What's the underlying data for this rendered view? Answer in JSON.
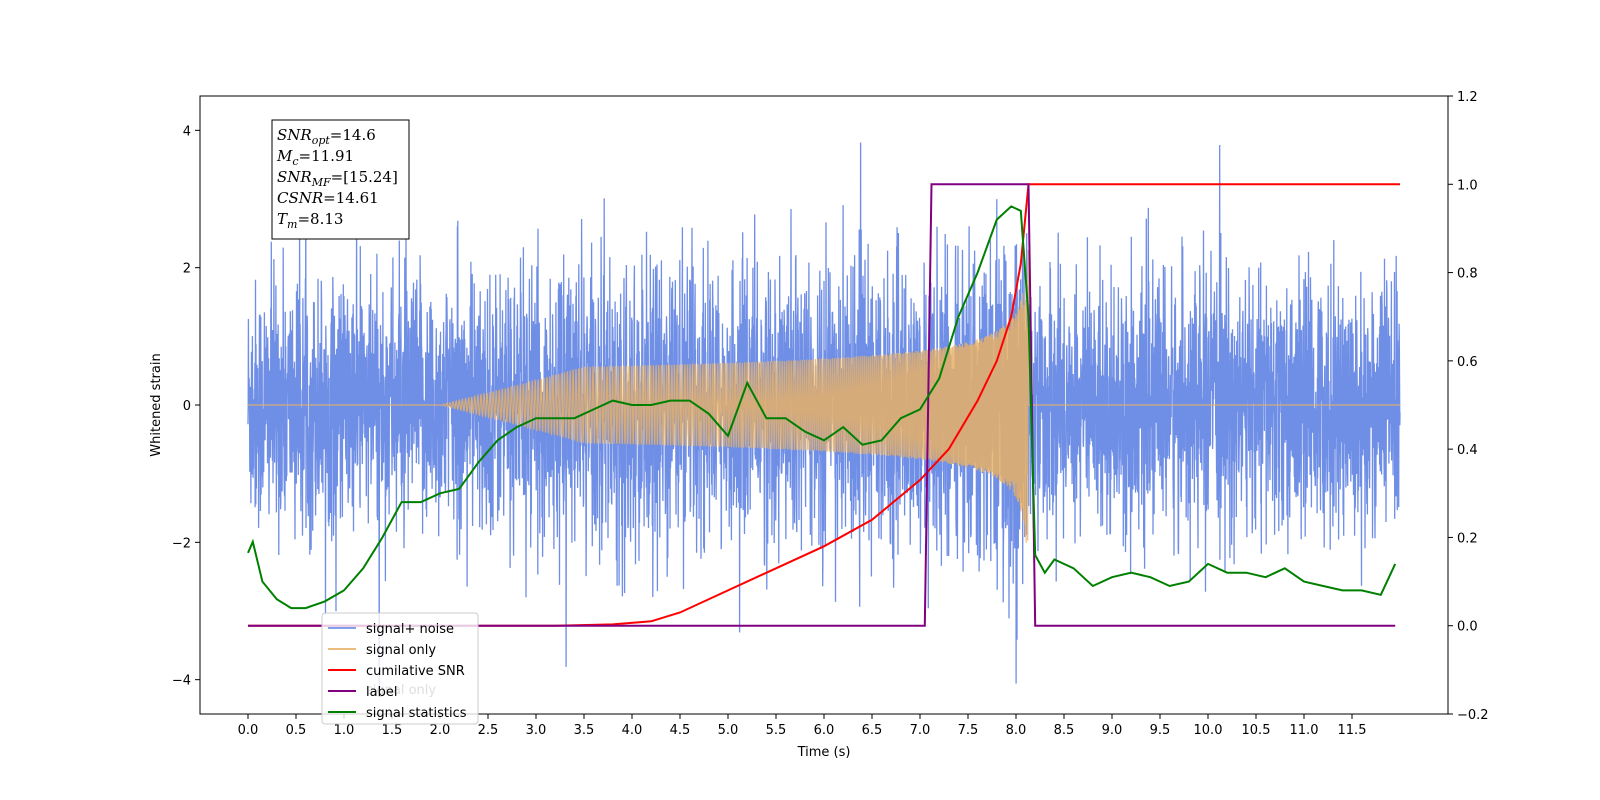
{
  "chart_data": {
    "type": "line",
    "title": "",
    "xlabel": "Time (s)",
    "ylabel": "Whitened strain",
    "xlim": [
      -0.5,
      12.5
    ],
    "ylim": [
      -4.5,
      4.5
    ],
    "y2lim": [
      -0.2,
      1.2
    ],
    "grid": false,
    "legend_position": "lower-left",
    "x_ticks": [
      "0.0",
      "0.5",
      "1.0",
      "1.5",
      "2.0",
      "2.5",
      "3.0",
      "3.5",
      "4.0",
      "4.5",
      "5.0",
      "5.5",
      "6.0",
      "6.5",
      "7.0",
      "7.5",
      "8.0",
      "8.5",
      "9.0",
      "9.5",
      "10.0",
      "10.5",
      "11.0",
      "11.5"
    ],
    "y_ticks": [
      "4",
      "2",
      "0",
      "−2",
      "−4"
    ],
    "y2_ticks": [
      "1.2",
      "1.0",
      "0.8",
      "0.6",
      "0.4",
      "0.2",
      "0.0",
      "−0.2"
    ],
    "annotation": [
      {
        "symbol": "SNR",
        "subscript": "opt",
        "value": "=14.6"
      },
      {
        "symbol": "M",
        "subscript": "c",
        "value": "=11.91"
      },
      {
        "symbol": "SNR",
        "subscript": "MF",
        "value": "=[15.24]"
      },
      {
        "symbol": "CSNR",
        "subscript": "",
        "value": "=14.61"
      },
      {
        "symbol": "T",
        "subscript": "m",
        "value": "=8.13"
      }
    ],
    "legend": [
      "signal+ noise",
      "signal only",
      "cumilative SNR",
      "label",
      "signal statistics"
    ],
    "legend_hidden_text": "signal only",
    "series": [
      {
        "name": "signal+ noise",
        "axis": "left",
        "color": "#6f8ee6",
        "description": "whitened noise plus signal, noise amplitude roughly within ±2.5 with spikes to ±4",
        "x_range": [
          0.0,
          12.0
        ],
        "noise_sigma": 0.9
      },
      {
        "name": "signal only",
        "axis": "left",
        "color": "#e8b066",
        "description": "chirp signal growing in amplitude until merger at about 8.13 s",
        "x_range": [
          0.0,
          12.0
        ],
        "merger_time": 8.13,
        "peak_amplitude": 2.6
      },
      {
        "name": "cumilative SNR",
        "axis": "right",
        "color": "#ff0000",
        "x": [
          0.0,
          3.2,
          3.8,
          4.2,
          4.5,
          5.0,
          5.5,
          6.0,
          6.5,
          7.0,
          7.3,
          7.6,
          7.8,
          7.95,
          8.05,
          8.13,
          12.0
        ],
        "y": [
          0.0,
          0.0,
          0.003,
          0.01,
          0.03,
          0.08,
          0.13,
          0.18,
          0.24,
          0.33,
          0.4,
          0.51,
          0.6,
          0.7,
          0.82,
          1.0,
          1.0
        ]
      },
      {
        "name": "label",
        "axis": "right",
        "color": "#800080",
        "x": [
          0.0,
          7.05,
          7.12,
          8.13,
          8.2,
          11.95
        ],
        "y": [
          0.0,
          0.0,
          1.0,
          1.0,
          0.0,
          0.0
        ]
      },
      {
        "name": "signal statistics",
        "axis": "right",
        "color": "#008000",
        "x": [
          0.0,
          0.05,
          0.15,
          0.3,
          0.45,
          0.6,
          0.8,
          1.0,
          1.2,
          1.4,
          1.6,
          1.8,
          2.0,
          2.2,
          2.4,
          2.6,
          2.8,
          3.0,
          3.2,
          3.4,
          3.6,
          3.8,
          4.0,
          4.2,
          4.4,
          4.6,
          4.8,
          5.0,
          5.2,
          5.4,
          5.6,
          5.8,
          6.0,
          6.2,
          6.4,
          6.6,
          6.8,
          7.0,
          7.2,
          7.4,
          7.6,
          7.8,
          7.95,
          8.05,
          8.13,
          8.2,
          8.3,
          8.4,
          8.6,
          8.8,
          9.0,
          9.2,
          9.4,
          9.6,
          9.8,
          10.0,
          10.2,
          10.4,
          10.6,
          10.8,
          11.0,
          11.2,
          11.4,
          11.6,
          11.8,
          11.95
        ],
        "y": [
          0.165,
          0.19,
          0.1,
          0.06,
          0.04,
          0.04,
          0.055,
          0.08,
          0.13,
          0.2,
          0.28,
          0.28,
          0.3,
          0.31,
          0.37,
          0.42,
          0.45,
          0.47,
          0.47,
          0.47,
          0.49,
          0.51,
          0.5,
          0.5,
          0.51,
          0.51,
          0.48,
          0.43,
          0.55,
          0.47,
          0.47,
          0.44,
          0.42,
          0.45,
          0.41,
          0.42,
          0.47,
          0.49,
          0.56,
          0.7,
          0.8,
          0.92,
          0.95,
          0.94,
          0.7,
          0.16,
          0.12,
          0.15,
          0.13,
          0.09,
          0.11,
          0.12,
          0.11,
          0.09,
          0.1,
          0.14,
          0.12,
          0.12,
          0.11,
          0.13,
          0.1,
          0.09,
          0.08,
          0.08,
          0.07,
          0.14
        ]
      }
    ]
  }
}
